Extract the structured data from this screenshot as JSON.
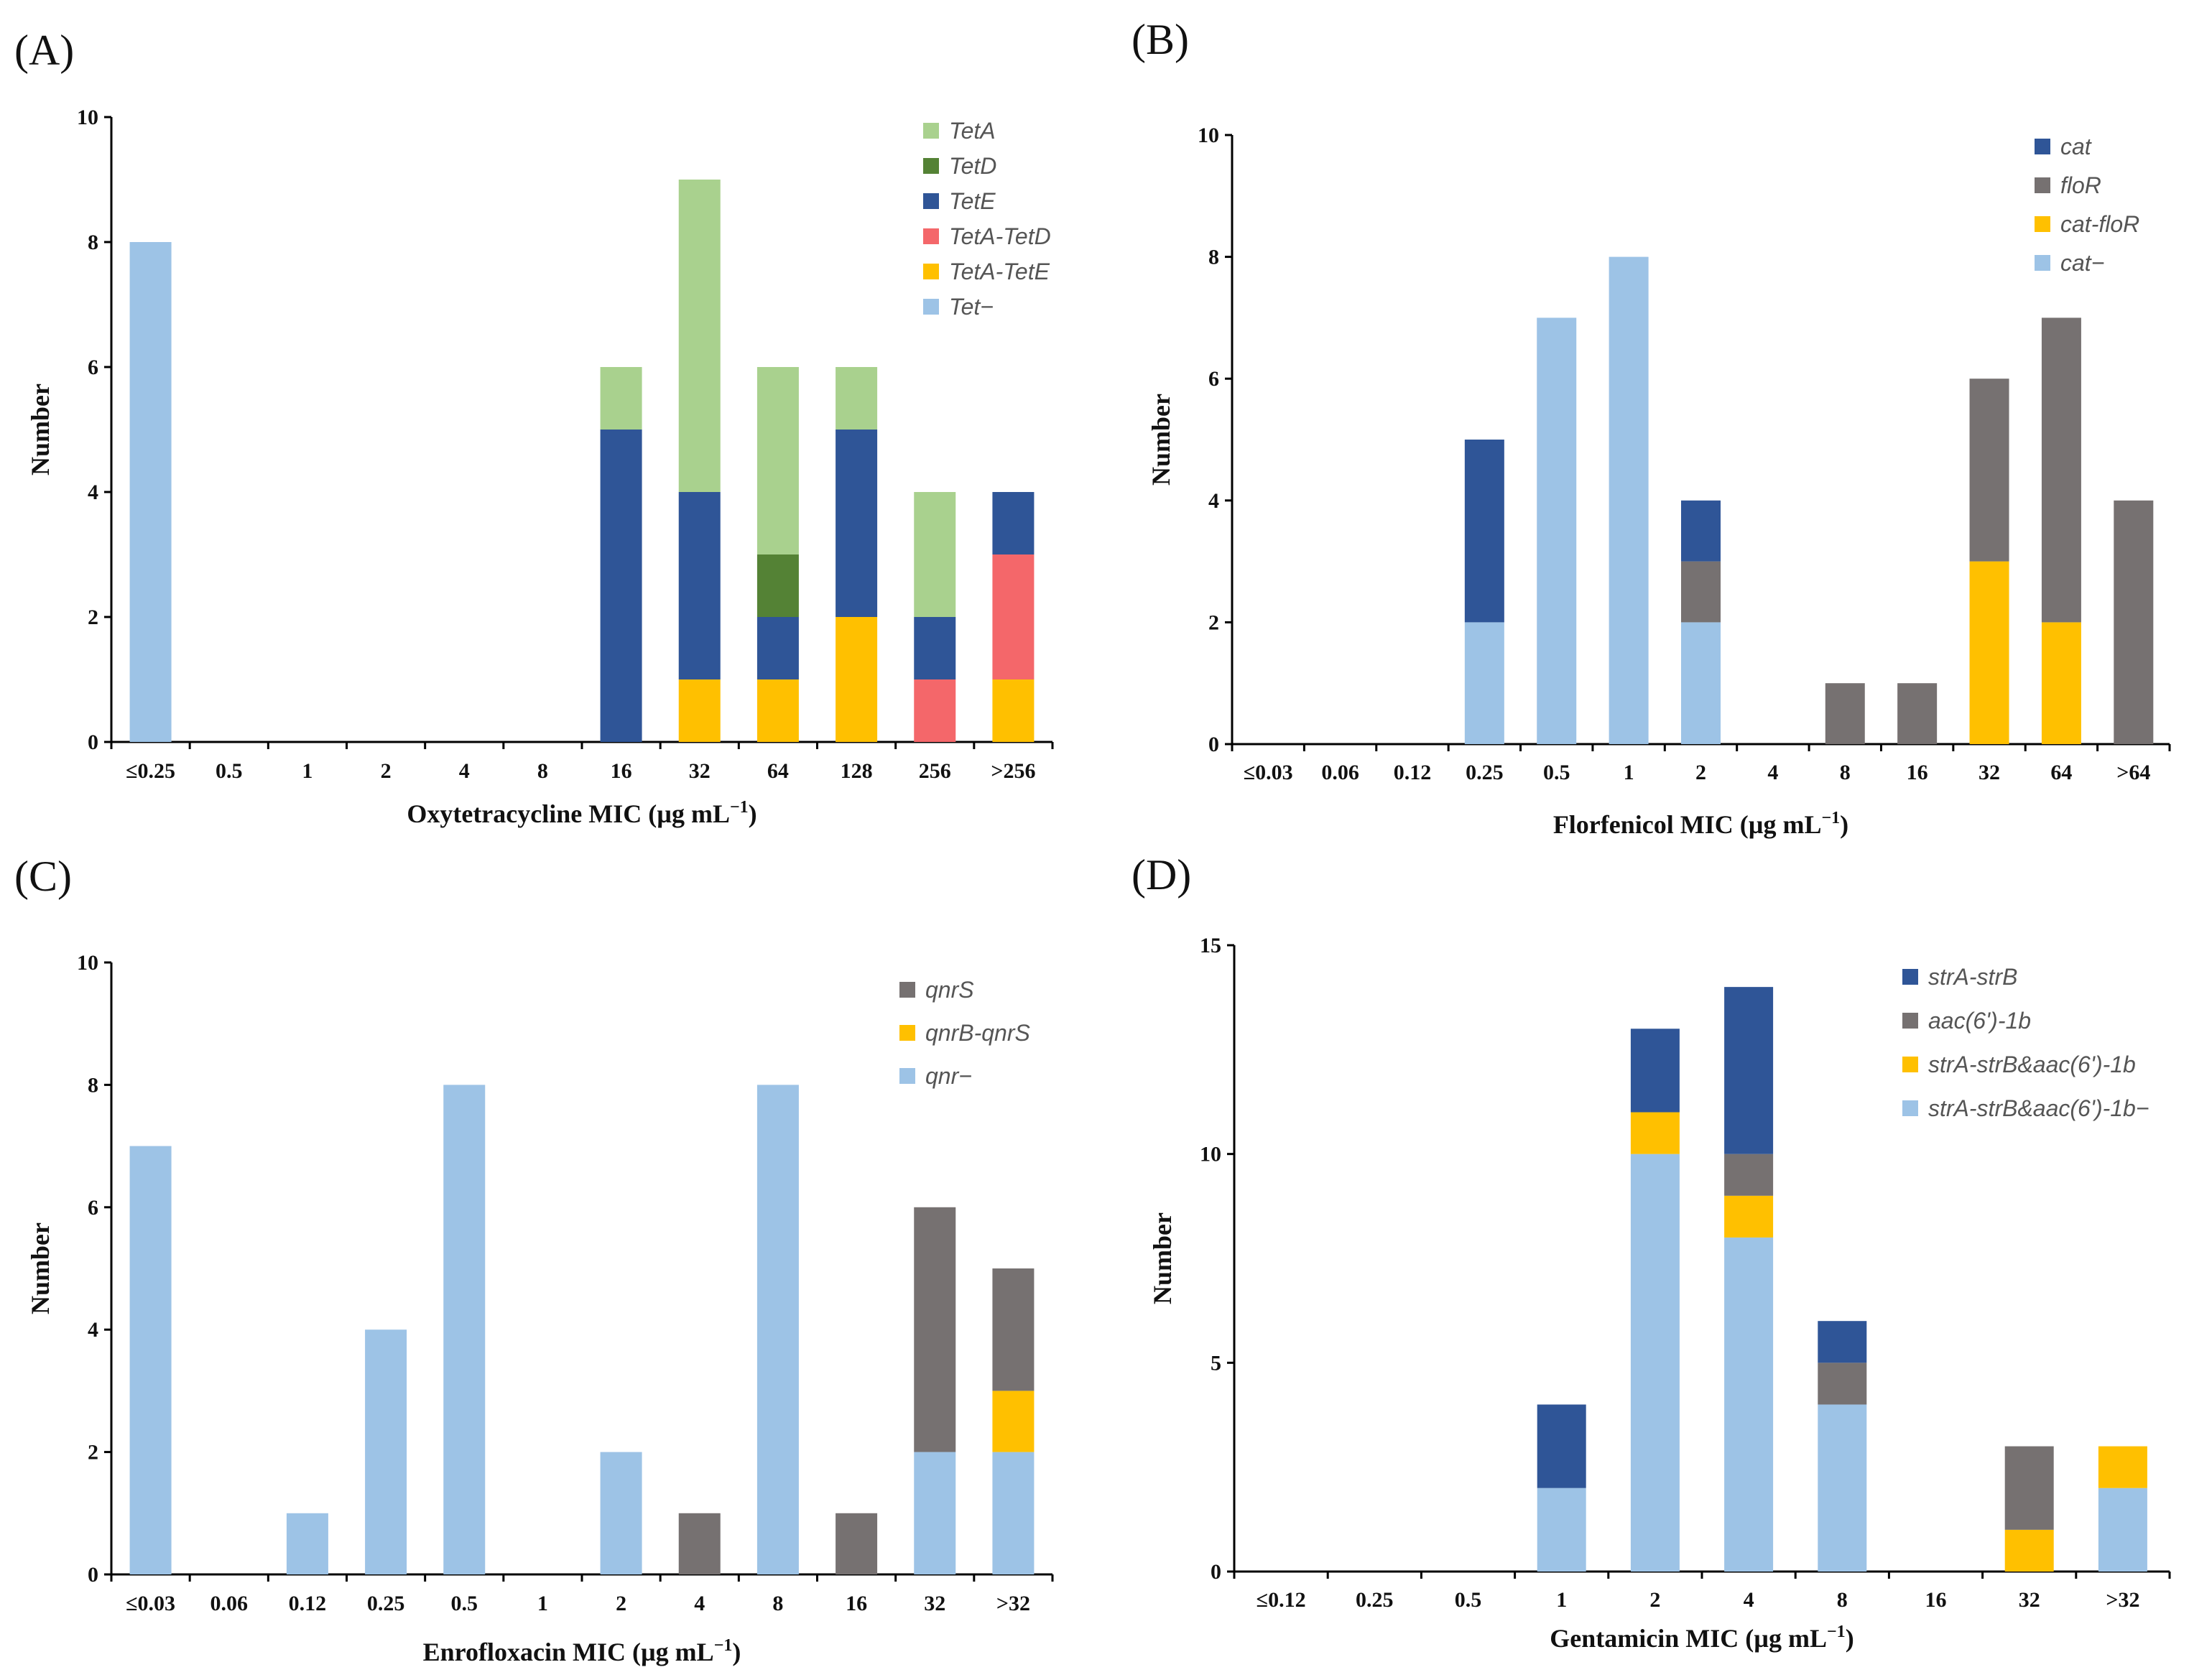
{
  "colors": {
    "light_blue": "#9DC3E6",
    "dark_blue": "#2F5597",
    "light_green": "#A9D18E",
    "dark_green": "#548235",
    "red": "#F4676A",
    "yellow": "#FFC000",
    "gray": "#767171"
  },
  "chart_data": [
    {
      "panel": "(A)",
      "type": "bar",
      "stacked": true,
      "xlabel": "Oxytetracycline MIC (µg mL",
      "xlabel_sup": "−1",
      "xlabel_end": ")",
      "ylabel": "Number",
      "ylim": [
        0,
        10
      ],
      "yticks": [
        "0",
        "2",
        "4",
        "6",
        "8",
        "10"
      ],
      "yticks_values": [
        0,
        2,
        4,
        6,
        8,
        10
      ],
      "categories": [
        "≤0.25",
        "0.5",
        "1",
        "2",
        "4",
        "8",
        "16",
        "32",
        "64",
        "128",
        "256",
        ">256"
      ],
      "legend_position": "top-right",
      "series": [
        {
          "name": "Tet−",
          "color": "#9DC3E6",
          "values": [
            8,
            0,
            0,
            0,
            0,
            0,
            0,
            0,
            0,
            0,
            0,
            0
          ]
        },
        {
          "name": "TetA-TetE",
          "color": "#FFC000",
          "values": [
            0,
            0,
            0,
            0,
            0,
            0,
            0,
            1,
            1,
            2,
            0,
            1
          ]
        },
        {
          "name": "TetA-TetD",
          "color": "#F4676A",
          "values": [
            0,
            0,
            0,
            0,
            0,
            0,
            0,
            0,
            0,
            0,
            1,
            2
          ]
        },
        {
          "name": "TetE",
          "color": "#2F5597",
          "values": [
            0,
            0,
            0,
            0,
            0,
            0,
            5,
            3,
            1,
            3,
            1,
            1
          ]
        },
        {
          "name": "TetD",
          "color": "#548235",
          "values": [
            0,
            0,
            0,
            0,
            0,
            0,
            0,
            0,
            1,
            0,
            0,
            0
          ]
        },
        {
          "name": "TetA",
          "color": "#A9D18E",
          "values": [
            0,
            0,
            0,
            0,
            0,
            0,
            1,
            5,
            3,
            1,
            2,
            0
          ]
        }
      ],
      "legend_order": [
        "TetA",
        "TetD",
        "TetE",
        "TetA-TetD",
        "TetA-TetE",
        "Tet−"
      ]
    },
    {
      "panel": "(B)",
      "type": "bar",
      "stacked": true,
      "xlabel": "Florfenicol MIC (µg mL",
      "xlabel_sup": "−1",
      "xlabel_end": ")",
      "ylabel": "Number",
      "ylim": [
        0,
        10
      ],
      "yticks": [
        "0",
        "2",
        "4",
        "6",
        "8",
        "10"
      ],
      "yticks_values": [
        0,
        2,
        4,
        6,
        8,
        10
      ],
      "categories": [
        "≤0.03",
        "0.06",
        "0.12",
        "0.25",
        "0.5",
        "1",
        "2",
        "4",
        "8",
        "16",
        "32",
        "64",
        ">64"
      ],
      "legend_position": "top-right",
      "series": [
        {
          "name": "cat−",
          "color": "#9DC3E6",
          "values": [
            0,
            0,
            0,
            2,
            7,
            8,
            2,
            0,
            0,
            0,
            0,
            0,
            0
          ]
        },
        {
          "name": "cat-floR",
          "color": "#FFC000",
          "values": [
            0,
            0,
            0,
            0,
            0,
            0,
            0,
            0,
            0,
            0,
            3,
            2,
            0
          ]
        },
        {
          "name": "floR",
          "color": "#767171",
          "values": [
            0,
            0,
            0,
            0,
            0,
            0,
            1,
            0,
            1,
            1,
            3,
            5,
            4
          ]
        },
        {
          "name": "cat",
          "color": "#2F5597",
          "values": [
            0,
            0,
            0,
            3,
            0,
            0,
            1,
            0,
            0,
            0,
            0,
            0,
            0
          ]
        }
      ],
      "legend_order": [
        "cat",
        "floR",
        "cat-floR",
        "cat−"
      ]
    },
    {
      "panel": "(C)",
      "type": "bar",
      "stacked": true,
      "xlabel": "Enrofloxacin MIC (µg mL",
      "xlabel_sup": "−1",
      "xlabel_end": ")",
      "ylabel": "Number",
      "ylim": [
        0,
        10
      ],
      "yticks": [
        "0",
        "2",
        "4",
        "6",
        "8",
        "10"
      ],
      "yticks_values": [
        0,
        2,
        4,
        6,
        8,
        10
      ],
      "categories": [
        "≤0.03",
        "0.06",
        "0.12",
        "0.25",
        "0.5",
        "1",
        "2",
        "4",
        "8",
        "16",
        "32",
        ">32"
      ],
      "legend_position": "top-right",
      "series": [
        {
          "name": "qnr−",
          "color": "#9DC3E6",
          "values": [
            7,
            0,
            1,
            4,
            8,
            0,
            2,
            0,
            8,
            0,
            2,
            2
          ]
        },
        {
          "name": "qnrB-qnrS",
          "color": "#FFC000",
          "values": [
            0,
            0,
            0,
            0,
            0,
            0,
            0,
            0,
            0,
            0,
            0,
            1
          ]
        },
        {
          "name": "qnrS",
          "color": "#767171",
          "values": [
            0,
            0,
            0,
            0,
            0,
            0,
            0,
            1,
            0,
            1,
            4,
            2
          ]
        }
      ],
      "legend_order": [
        "qnrS",
        "qnrB-qnrS",
        "qnr−"
      ]
    },
    {
      "panel": "(D)",
      "type": "bar",
      "stacked": true,
      "xlabel": "Gentamicin MIC (µg mL",
      "xlabel_sup": "−1",
      "xlabel_end": ")",
      "ylabel": "Number",
      "ylim": [
        0,
        15
      ],
      "yticks": [
        "0",
        "5",
        "10",
        "15"
      ],
      "yticks_values": [
        0,
        5,
        10,
        15
      ],
      "categories": [
        "≤0.12",
        "0.25",
        "0.5",
        "1",
        "2",
        "4",
        "8",
        "16",
        "32",
        ">32"
      ],
      "legend_position": "top-right",
      "series": [
        {
          "name": "strA-strB&aac(6')-1b−",
          "color": "#9DC3E6",
          "values": [
            0,
            0,
            0,
            2,
            10,
            8,
            4,
            0,
            0,
            2
          ]
        },
        {
          "name": "strA-strB&aac(6')-1b",
          "color": "#FFC000",
          "values": [
            0,
            0,
            0,
            0,
            1,
            1,
            0,
            0,
            1,
            1
          ]
        },
        {
          "name": "aac(6')-1b",
          "color": "#767171",
          "values": [
            0,
            0,
            0,
            0,
            0,
            1,
            1,
            0,
            2,
            0
          ]
        },
        {
          "name": "strA-strB",
          "color": "#2F5597",
          "values": [
            0,
            0,
            0,
            2,
            2,
            4,
            1,
            0,
            0,
            0
          ]
        }
      ],
      "legend_order": [
        "strA-strB",
        "aac(6')-1b",
        "strA-strB&aac(6')-1b",
        "strA-strB&aac(6')-1b−"
      ]
    }
  ]
}
